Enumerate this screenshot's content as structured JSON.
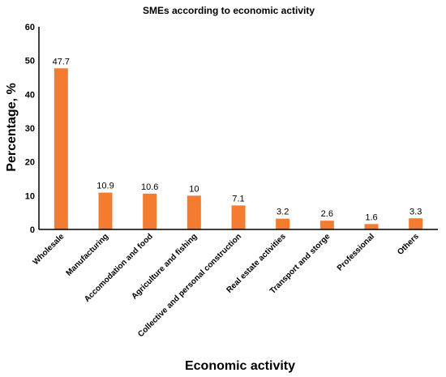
{
  "chart_data": {
    "type": "bar",
    "title": "SMEs according to economic activity",
    "xlabel": "Economic activity",
    "ylabel": "Percentage, %",
    "ylim": [
      0,
      60
    ],
    "yticks": [
      0,
      10,
      20,
      30,
      40,
      50,
      60
    ],
    "grid": false,
    "legend": "none",
    "bar_color": "#F47C30",
    "categories": [
      "Wholesale",
      "Manufacturing",
      "Accomodation and food",
      "Agriculture and fishing",
      "Collective and personal construction",
      "Real estate activities",
      "Transport and storge",
      "Professional",
      "Others"
    ],
    "values": [
      47.7,
      10.9,
      10.6,
      10,
      7.1,
      3.2,
      2.6,
      1.6,
      3.3
    ],
    "data_labels": [
      "47.7",
      "10.9",
      "10.6",
      "10",
      "7.1",
      "3.2",
      "2.6",
      "1.6",
      "3.3"
    ]
  }
}
